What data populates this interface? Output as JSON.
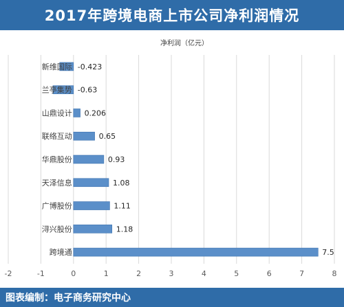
{
  "header": {
    "title": "2017年跨境电商上市公司净利润情况"
  },
  "footer": {
    "credit": "图表编制：电子商务研究中心"
  },
  "colors": {
    "bar": "#5b8fc9",
    "bar_edge": "#3f74b0",
    "accent": "#2f6ca8",
    "grid": "#d9d9d9",
    "text": "#404040"
  },
  "chart_data": {
    "type": "bar",
    "orientation": "horizontal",
    "title": "净利润（亿元）",
    "xlabel": "",
    "ylabel": "",
    "xlim": [
      -2,
      8
    ],
    "xticks": [
      -2,
      -1,
      0,
      1,
      2,
      3,
      4,
      5,
      6,
      7,
      8
    ],
    "grid": true,
    "categories": [
      "新维国际",
      "兰亭集势",
      "山鼎设计",
      "联络互动",
      "华鼎股份",
      "天泽信息",
      "广博股份",
      "浔兴股份",
      "跨境通"
    ],
    "values": [
      -0.423,
      -0.63,
      0.206,
      0.65,
      0.93,
      1.08,
      1.11,
      1.18,
      7.5
    ],
    "value_labels": [
      "-0.423",
      "-0.63",
      "0.206",
      "0.65",
      "0.93",
      "1.08",
      "1.11",
      "1.18",
      "7.5"
    ]
  }
}
